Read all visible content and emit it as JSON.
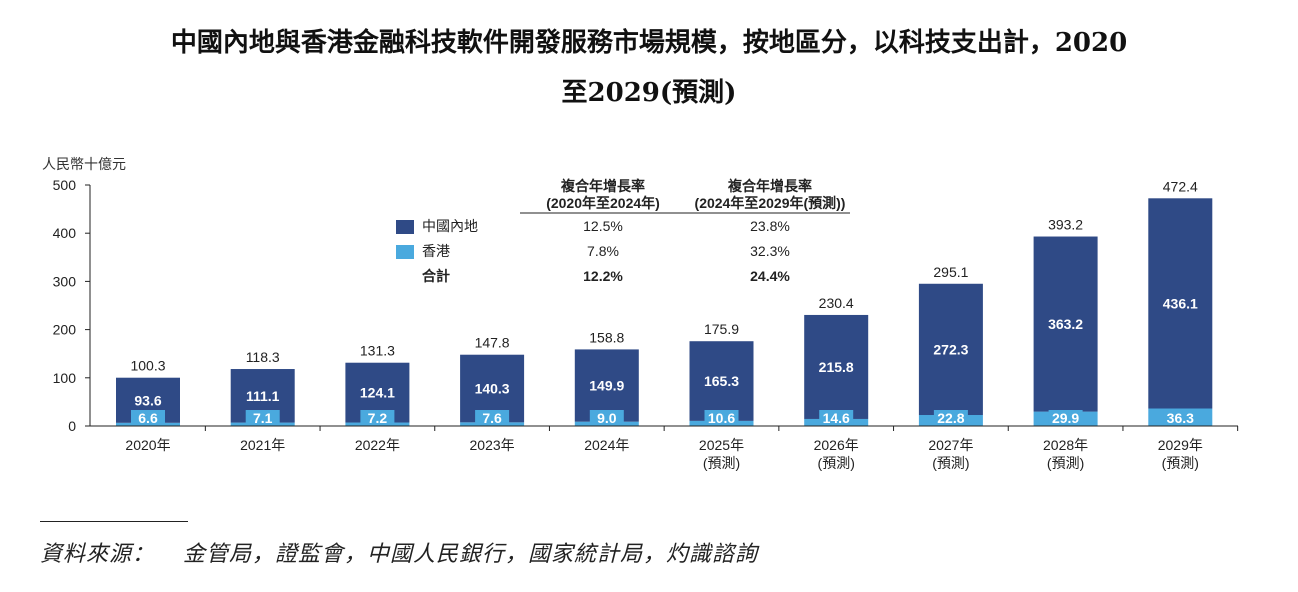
{
  "title": {
    "line1": "中國內地與香港金融科技軟件開發服務市場規模，按地區分，以科技支出計，2020",
    "line2": "至2029(預測)"
  },
  "unit": "人民幣十億元",
  "colors": {
    "mainland": "#2f4a86",
    "hongkong": "#4aa9de"
  },
  "chart_data": {
    "type": "bar",
    "stacked": true,
    "categories": [
      "2020年",
      "2021年",
      "2022年",
      "2023年",
      "2024年",
      "2025年",
      "2026年",
      "2027年",
      "2028年",
      "2029年"
    ],
    "category_notes": [
      "",
      "",
      "",
      "",
      "",
      "(預測)",
      "(預測)",
      "(預測)",
      "(預測)",
      "(預測)"
    ],
    "series": [
      {
        "name": "中國內地",
        "values": [
          93.6,
          111.1,
          124.1,
          140.3,
          149.9,
          165.3,
          215.8,
          272.3,
          363.2,
          436.1
        ]
      },
      {
        "name": "香港",
        "values": [
          6.6,
          7.1,
          7.2,
          7.6,
          9.0,
          10.6,
          14.6,
          22.8,
          29.9,
          36.3
        ]
      }
    ],
    "totals": [
      100.3,
      118.3,
      131.3,
      147.8,
      158.8,
      175.9,
      230.4,
      295.1,
      393.2,
      472.4
    ],
    "yticks": [
      0,
      100,
      200,
      300,
      400,
      500
    ],
    "ylim": [
      0,
      500
    ],
    "legend": {
      "total_label": "合計"
    },
    "cagr": {
      "headers": [
        {
          "line1": "複合年增長率",
          "line2": "(2020年至2024年)"
        },
        {
          "line1": "複合年增長率",
          "line2": "(2024年至2029年(預測))"
        }
      ],
      "rows": [
        {
          "values": [
            "12.5%",
            "23.8%"
          ]
        },
        {
          "values": [
            "7.8%",
            "32.3%"
          ]
        },
        {
          "values": [
            "12.2%",
            "24.4%"
          ]
        }
      ]
    }
  },
  "source": {
    "label": "資料來源：",
    "text": "金管局，證監會，中國人民銀行，國家統計局，灼識諮詢"
  }
}
